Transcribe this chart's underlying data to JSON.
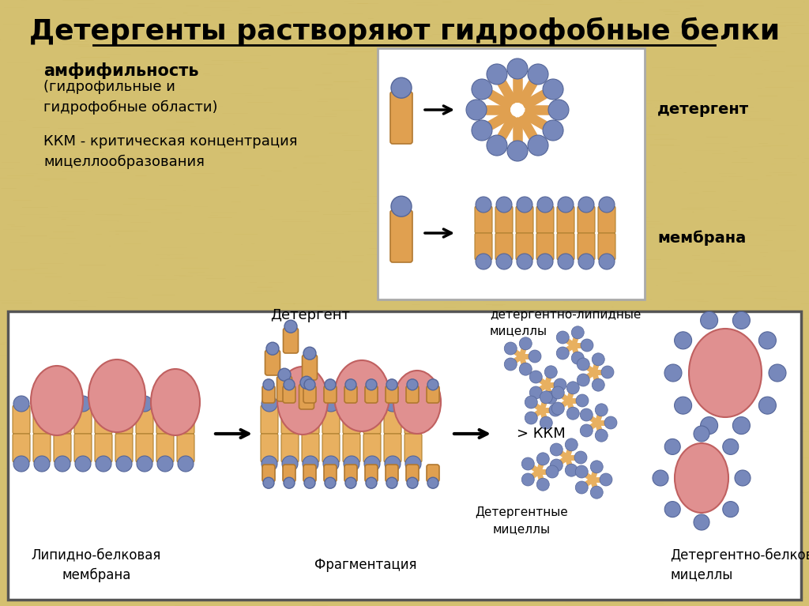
{
  "title": "Детергенты растворяют гидрофобные белки",
  "bg_top": "#d4c070",
  "bg_bot": "#ffffff",
  "text_amphiphile": "амфифильность",
  "text_amphiphile_sub": "(гидрофильные и\nгидрофобные области)",
  "text_kkm": "ККМ - критическая концентрация\nмицеллообразования",
  "text_detergent_label": "детергент",
  "text_membrane_label": "мембрана",
  "text_lipid_membrane": "Липидно-белковая\nмембрана",
  "text_detergent2": "Детергент",
  "text_fragmentation": "Фрагментация",
  "text_det_micelles": "Детергентные\nмицеллы",
  "text_det_lipid_line1": "детергентно-липидные",
  "text_det_lipid_line2": "мицеллы",
  "text_kkm2": "> ККМ",
  "text_det_protein": "Детергентно-белковые\nмицеллы",
  "color_head_blue": "#7788bb",
  "color_tail_orange": "#e0a050",
  "color_protein_pink": "#e09090",
  "color_lipid_bilayer": "#e8b060",
  "color_border": "#555555",
  "color_sand": "#d4c070"
}
